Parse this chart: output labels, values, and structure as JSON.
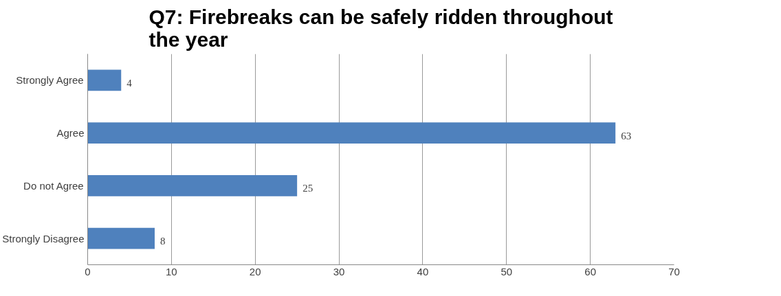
{
  "chart_data": {
    "type": "bar",
    "orientation": "horizontal",
    "title": "Q7: Firebreaks can be safely ridden throughout\nthe year",
    "categories": [
      "Strongly Agree",
      "Agree",
      "Do not Agree",
      "Strongly Disagree"
    ],
    "values": [
      4,
      63,
      25,
      8
    ],
    "color": "#4f81bd",
    "xlim": [
      0,
      70
    ],
    "xticks": [
      0,
      10,
      20,
      30,
      40,
      50,
      60,
      70
    ],
    "grid": "x",
    "data_labels": true
  }
}
